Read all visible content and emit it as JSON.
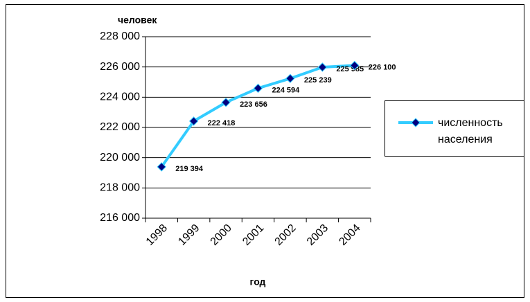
{
  "chart_data": {
    "type": "line",
    "y_label": "человек",
    "x_label": "год",
    "categories": [
      "1998",
      "1999",
      "2000",
      "2001",
      "2002",
      "2003",
      "2004"
    ],
    "series": [
      {
        "name": "численность населения",
        "color": "#33ccff",
        "marker_color": "#000080",
        "values": [
          219394,
          222418,
          223656,
          224594,
          225239,
          225985,
          226100
        ],
        "value_labels": [
          "219 394",
          "222 418",
          "223 656",
          "224 594",
          "225 239",
          "225 985",
          "226 100"
        ]
      }
    ],
    "ylim": [
      216000,
      228000
    ],
    "yticks": [
      {
        "value": 216000,
        "label": "216 000"
      },
      {
        "value": 218000,
        "label": "218 000"
      },
      {
        "value": 220000,
        "label": "220 000"
      },
      {
        "value": 222000,
        "label": "222 000"
      },
      {
        "value": 224000,
        "label": "224 000"
      },
      {
        "value": 226000,
        "label": "226 000"
      },
      {
        "value": 228000,
        "label": "228 000"
      }
    ],
    "grid": true,
    "legend": "right"
  }
}
